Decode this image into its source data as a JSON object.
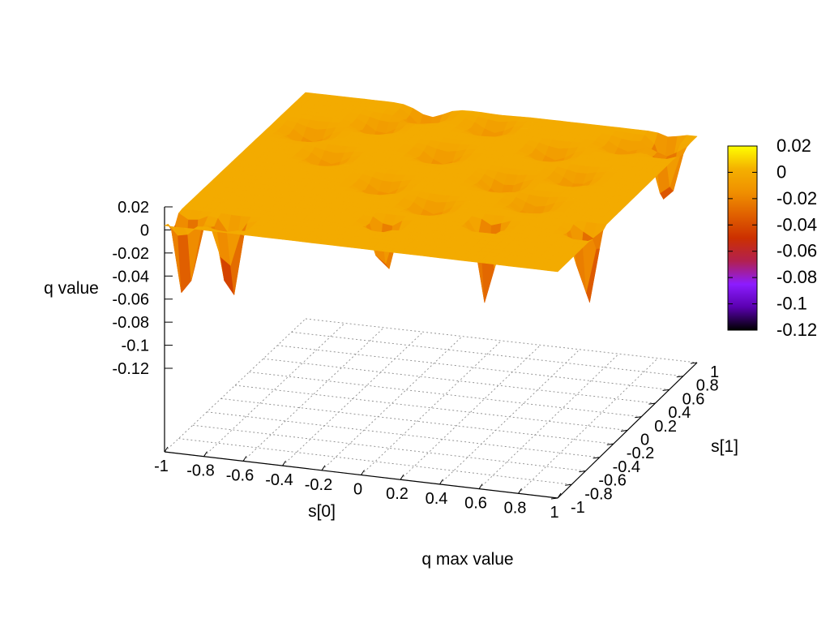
{
  "chart_data": {
    "type": "surface3d",
    "title": "q max value",
    "xlabel": "s[0]",
    "ylabel": "s[1]",
    "zlabel": "q value",
    "xlim": [
      -1,
      1
    ],
    "ylim": [
      -1,
      1
    ],
    "zlim": [
      -0.12,
      0.02
    ],
    "x_ticks": [
      "-1",
      "-0.8",
      "-0.6",
      "-0.4",
      "-0.2",
      "0",
      "0.2",
      "0.4",
      "0.6",
      "0.8",
      "1"
    ],
    "y_ticks": [
      "-1",
      "-0.8",
      "-0.6",
      "-0.4",
      "-0.2",
      "0",
      "0.2",
      "0.4",
      "0.6",
      "0.8",
      "1"
    ],
    "z_ticks": [
      "0.02",
      "0",
      "-0.02",
      "-0.04",
      "-0.06",
      "-0.08",
      "-0.1",
      "-0.12"
    ],
    "colorbar": {
      "range": [
        -0.12,
        0.02
      ],
      "ticks": [
        "0.02",
        "0",
        "-0.02",
        "-0.04",
        "-0.06",
        "-0.08",
        "-0.1",
        "-0.12"
      ],
      "colors": [
        "#000000",
        "#5a00b0",
        "#8c1cff",
        "#b22050",
        "#cc3000",
        "#e06000",
        "#f09000",
        "#f4b000",
        "#ffff00"
      ]
    },
    "grid": true,
    "base_level": 0.0,
    "spikes": [
      {
        "x": -0.93,
        "y": -0.88,
        "depth": -0.085
      },
      {
        "x": -0.72,
        "y": -0.86,
        "depth": -0.075
      },
      {
        "x": -0.02,
        "y": -0.62,
        "depth": -0.055
      },
      {
        "x": 0.46,
        "y": -0.48,
        "depth": -0.08
      },
      {
        "x": 0.94,
        "y": -0.42,
        "depth": -0.075
      },
      {
        "x": 0.92,
        "y": 0.78,
        "depth": -0.06
      },
      {
        "x": 0.86,
        "y": 0.92,
        "depth": -0.045
      }
    ],
    "dips": [
      {
        "x": -0.8,
        "y": 0.5,
        "depth": -0.018
      },
      {
        "x": -0.52,
        "y": 0.7,
        "depth": -0.016
      },
      {
        "x": -0.36,
        "y": 0.92,
        "depth": -0.02
      },
      {
        "x": -0.1,
        "y": 0.4,
        "depth": -0.018
      },
      {
        "x": 0.0,
        "y": 0.84,
        "depth": -0.016
      },
      {
        "x": 0.32,
        "y": 0.12,
        "depth": -0.02
      },
      {
        "x": 0.4,
        "y": 0.6,
        "depth": -0.016
      },
      {
        "x": 0.62,
        "y": 0.3,
        "depth": -0.015
      },
      {
        "x": 0.7,
        "y": 0.8,
        "depth": -0.014
      },
      {
        "x": -0.6,
        "y": 0.2,
        "depth": -0.015
      },
      {
        "x": -0.22,
        "y": -0.1,
        "depth": -0.016
      },
      {
        "x": 0.1,
        "y": -0.3,
        "depth": -0.016
      },
      {
        "x": 0.56,
        "y": -0.12,
        "depth": -0.015
      }
    ]
  }
}
